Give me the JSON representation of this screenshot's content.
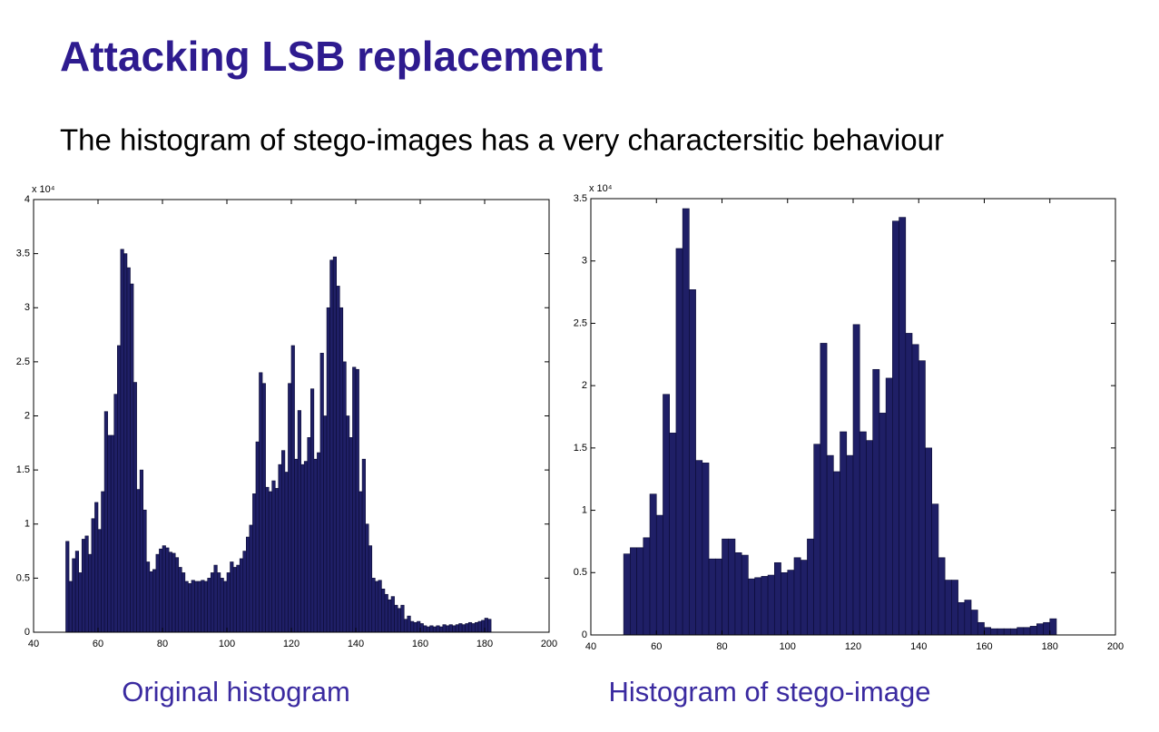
{
  "title": "Attacking LSB replacement",
  "subtitle": "The histogram of stego-images has a very charactersitic behaviour",
  "chart_data": [
    {
      "type": "histogram",
      "caption": "Original histogram",
      "y_multiplier": "x 10⁴",
      "color": "#1f1f66",
      "bins": [
        50,
        51,
        52,
        53,
        54,
        55,
        56,
        57,
        58,
        59,
        60,
        61,
        62,
        63,
        64,
        65,
        66,
        67,
        68,
        69,
        70,
        71,
        72,
        73,
        74,
        75,
        76,
        77,
        78,
        79,
        80,
        81,
        82,
        83,
        84,
        85,
        86,
        87,
        88,
        89,
        90,
        91,
        92,
        93,
        94,
        95,
        96,
        97,
        98,
        99,
        100,
        101,
        102,
        103,
        104,
        105,
        106,
        107,
        108,
        109,
        110,
        111,
        112,
        113,
        114,
        115,
        116,
        117,
        118,
        119,
        120,
        121,
        122,
        123,
        124,
        125,
        126,
        127,
        128,
        129,
        130,
        131,
        132,
        133,
        134,
        135,
        136,
        137,
        138,
        139,
        140,
        141,
        142,
        143,
        144,
        145,
        146,
        147,
        148,
        149,
        150,
        151,
        152,
        153,
        154,
        155,
        156,
        157,
        158,
        159,
        160,
        161,
        162,
        163,
        164,
        165,
        166,
        167,
        168,
        169,
        170,
        171,
        172,
        173,
        174,
        175,
        176,
        177,
        178,
        179,
        180,
        181,
        182
      ],
      "values": [
        0.84,
        0.47,
        0.68,
        0.75,
        0.55,
        0.86,
        0.89,
        0.72,
        1.05,
        1.2,
        0.95,
        1.3,
        2.04,
        1.82,
        1.82,
        2.2,
        2.65,
        3.54,
        3.5,
        3.37,
        3.22,
        2.31,
        1.32,
        1.5,
        1.13,
        0.65,
        0.56,
        0.58,
        0.72,
        0.77,
        0.8,
        0.78,
        0.74,
        0.73,
        0.69,
        0.6,
        0.55,
        0.47,
        0.45,
        0.48,
        0.47,
        0.47,
        0.48,
        0.47,
        0.5,
        0.55,
        0.62,
        0.55,
        0.5,
        0.47,
        0.55,
        0.65,
        0.6,
        0.62,
        0.68,
        0.75,
        0.88,
        0.99,
        1.28,
        1.76,
        2.4,
        2.3,
        1.34,
        1.3,
        1.4,
        1.33,
        1.55,
        1.68,
        1.48,
        2.3,
        2.65,
        1.6,
        2.05,
        1.55,
        1.58,
        1.8,
        2.25,
        1.6,
        1.66,
        2.58,
        2.0,
        3.0,
        3.44,
        3.47,
        3.2,
        3.0,
        2.5,
        2.0,
        1.8,
        2.45,
        2.43,
        1.3,
        1.6,
        1.0,
        0.8,
        0.5,
        0.47,
        0.48,
        0.4,
        0.35,
        0.3,
        0.33,
        0.25,
        0.22,
        0.25,
        0.12,
        0.15,
        0.1,
        0.09,
        0.1,
        0.08,
        0.06,
        0.05,
        0.06,
        0.05,
        0.06,
        0.05,
        0.07,
        0.06,
        0.07,
        0.06,
        0.07,
        0.08,
        0.07,
        0.08,
        0.09,
        0.08,
        0.09,
        0.1,
        0.11,
        0.13,
        0.12
      ],
      "xlim": [
        40,
        200
      ],
      "xticks": [
        40,
        60,
        80,
        100,
        120,
        140,
        160,
        180,
        200
      ],
      "ylim": [
        0,
        4
      ],
      "yticks": [
        0,
        0.5,
        1,
        1.5,
        2,
        2.5,
        3,
        3.5,
        4
      ]
    },
    {
      "type": "histogram",
      "caption": "Histogram of stego-image",
      "y_multiplier": "x 10⁴",
      "color": "#1f1f66",
      "bins": [
        50,
        52,
        54,
        56,
        58,
        60,
        62,
        64,
        66,
        68,
        70,
        72,
        74,
        76,
        78,
        80,
        82,
        84,
        86,
        88,
        90,
        92,
        94,
        96,
        98,
        100,
        102,
        104,
        106,
        108,
        110,
        112,
        114,
        116,
        118,
        120,
        122,
        124,
        126,
        128,
        130,
        132,
        134,
        136,
        138,
        140,
        142,
        144,
        146,
        148,
        150,
        152,
        154,
        156,
        158,
        160,
        162,
        164,
        166,
        168,
        170,
        172,
        174,
        176,
        178,
        180,
        182
      ],
      "values": [
        0.65,
        0.7,
        0.7,
        0.78,
        1.13,
        0.96,
        1.93,
        1.62,
        3.1,
        3.42,
        2.77,
        1.4,
        1.38,
        0.61,
        0.61,
        0.77,
        0.77,
        0.66,
        0.64,
        0.45,
        0.46,
        0.47,
        0.48,
        0.58,
        0.5,
        0.52,
        0.62,
        0.6,
        0.77,
        1.53,
        2.34,
        1.44,
        1.31,
        1.63,
        1.44,
        2.49,
        1.63,
        1.56,
        2.13,
        1.78,
        2.06,
        3.32,
        3.35,
        2.42,
        2.33,
        2.2,
        1.5,
        1.05,
        0.62,
        0.44,
        0.44,
        0.26,
        0.28,
        0.2,
        0.1,
        0.06,
        0.05,
        0.05,
        0.05,
        0.05,
        0.06,
        0.06,
        0.07,
        0.09,
        0.1,
        0.13
      ],
      "xlim": [
        40,
        200
      ],
      "xticks": [
        40,
        60,
        80,
        100,
        120,
        140,
        160,
        180,
        200
      ],
      "ylim": [
        0,
        3.5
      ],
      "yticks": [
        0,
        0.5,
        1,
        1.5,
        2,
        2.5,
        3,
        3.5
      ]
    }
  ]
}
